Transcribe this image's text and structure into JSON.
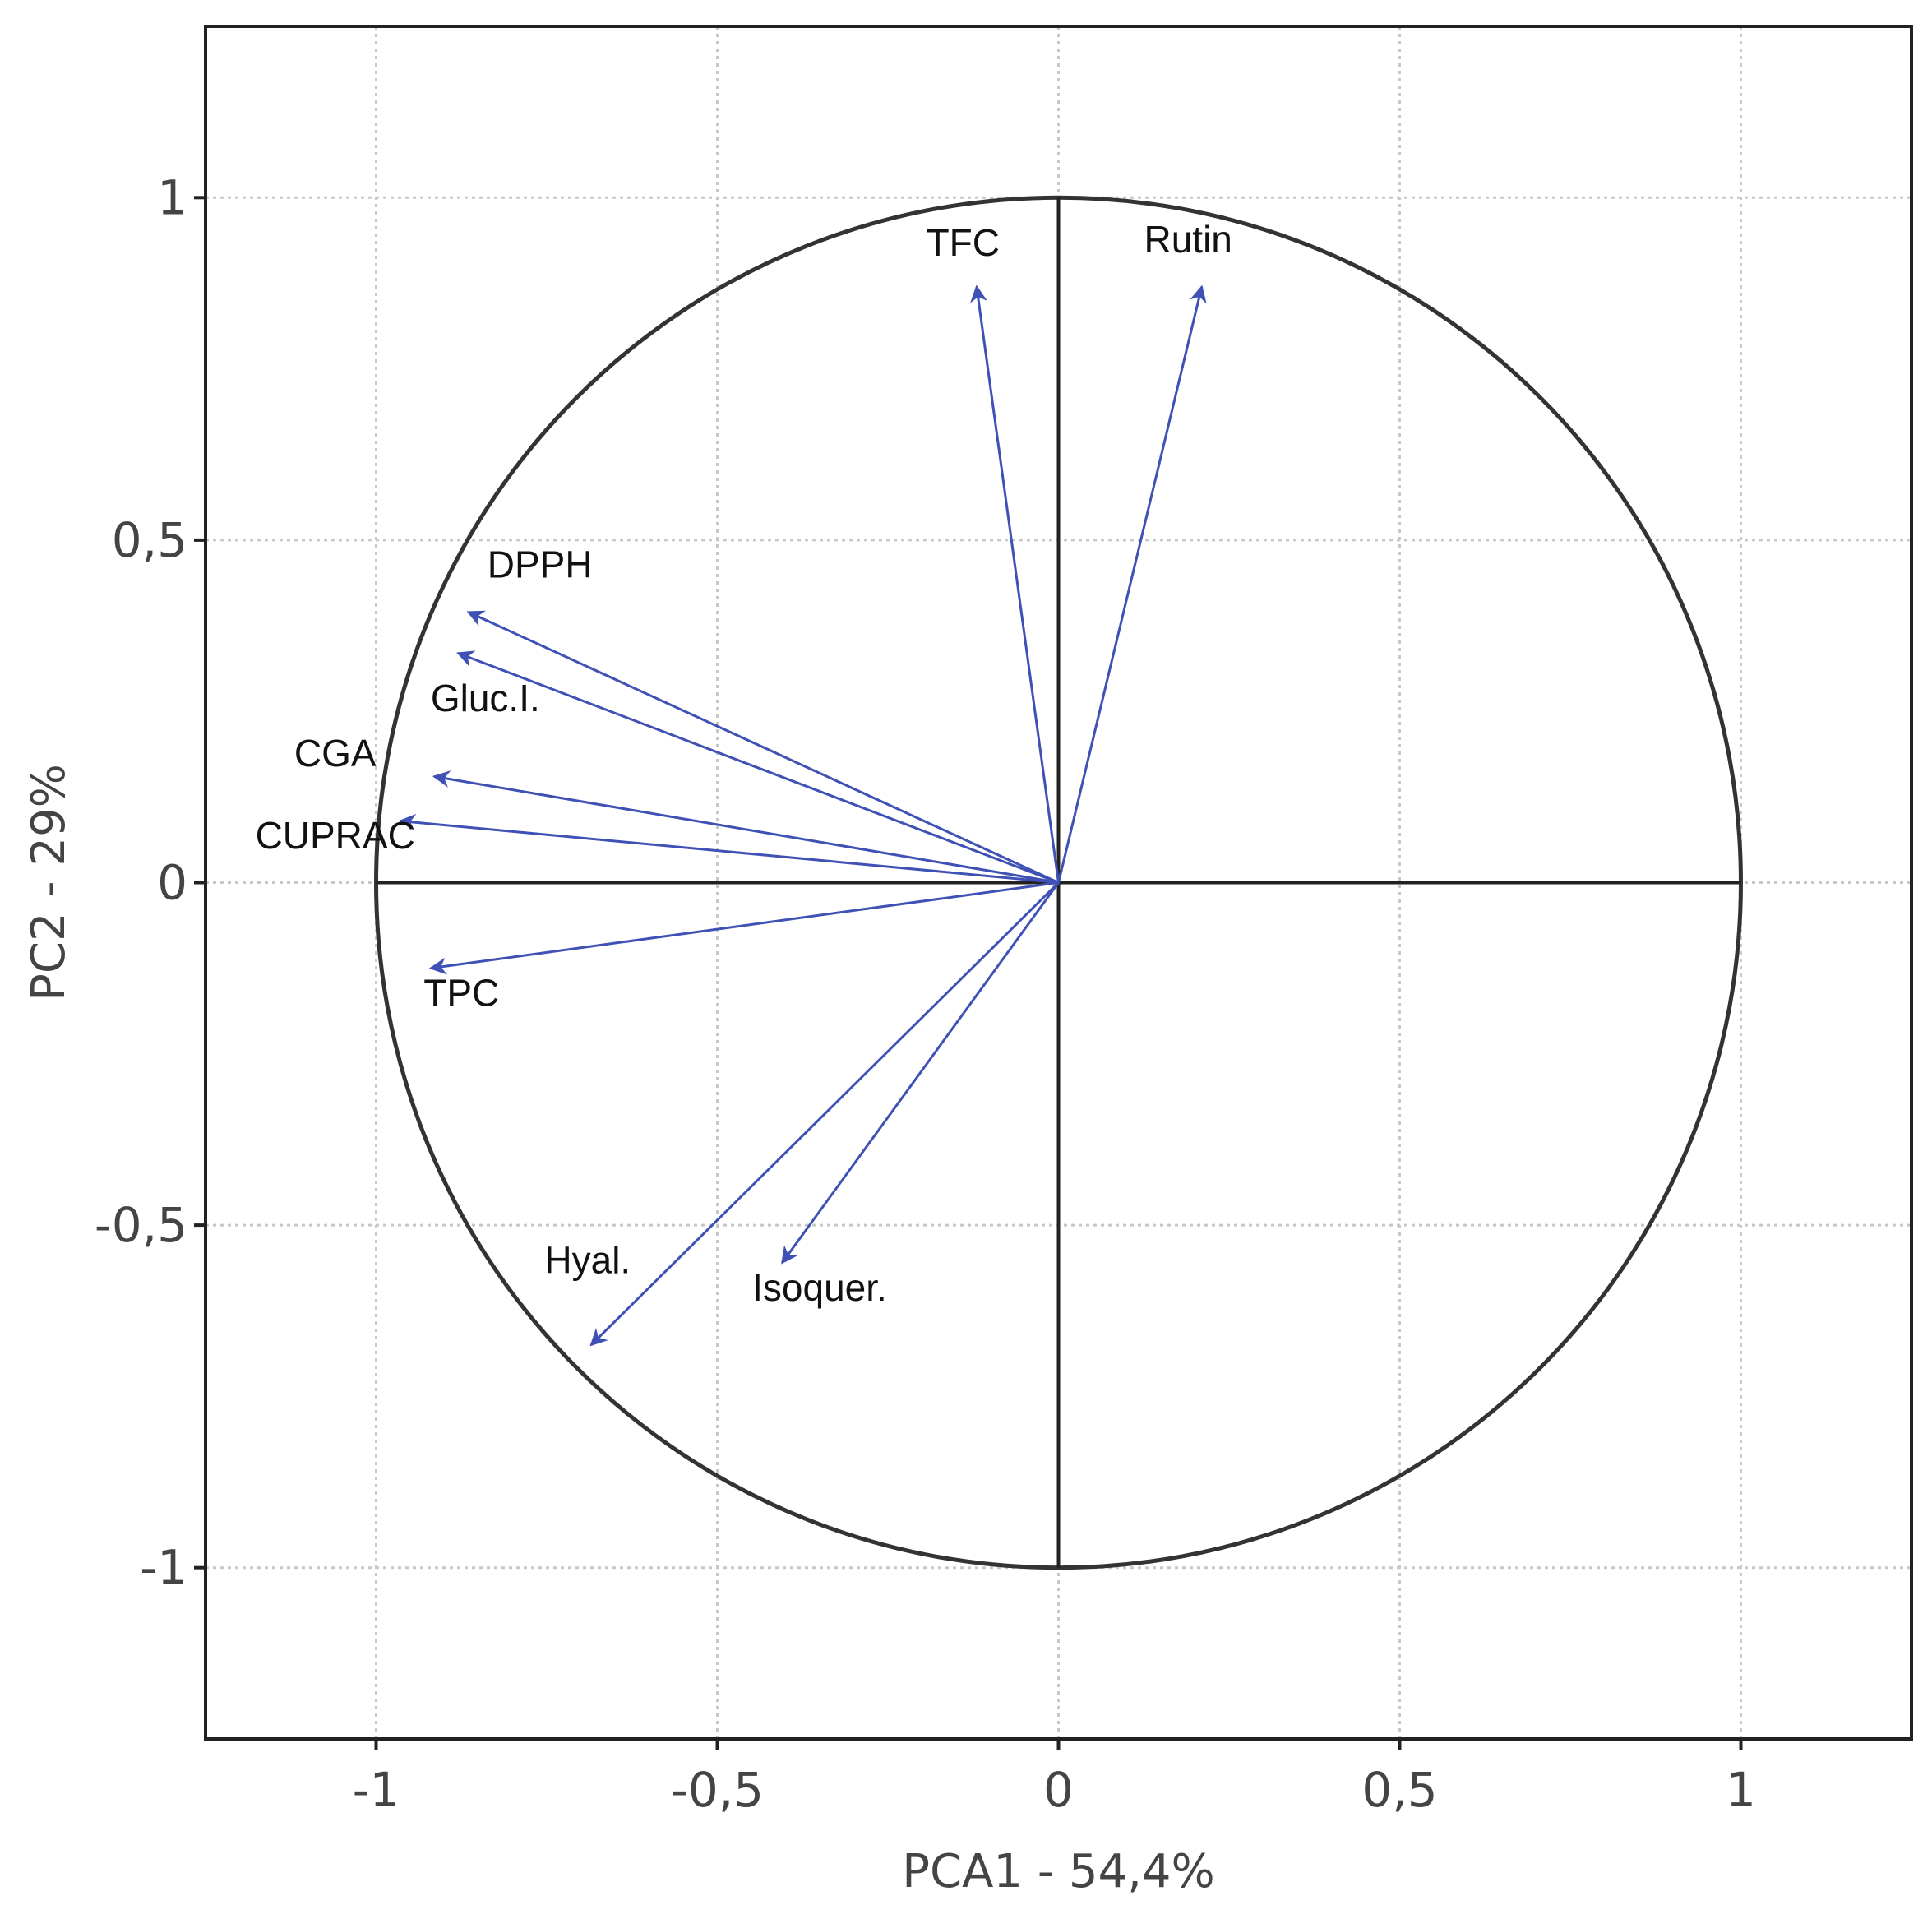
{
  "chart_data": {
    "type": "scatter",
    "subtype": "pca-correlation-circle",
    "xlabel": "PCA1 - 54,4%",
    "ylabel": "PC2 - 29%",
    "xlim": [
      -1.25,
      1.25
    ],
    "ylim": [
      -1.25,
      1.25
    ],
    "x_ticks": [
      {
        "value": -1,
        "label": "-1"
      },
      {
        "value": -0.5,
        "label": "-0,5"
      },
      {
        "value": 0,
        "label": "0"
      },
      {
        "value": 0.5,
        "label": "0,5"
      },
      {
        "value": 1,
        "label": "1"
      }
    ],
    "y_ticks": [
      {
        "value": 1,
        "label": "1"
      },
      {
        "value": 0.5,
        "label": "0,5"
      },
      {
        "value": 0,
        "label": "0"
      },
      {
        "value": -0.5,
        "label": "-0,5"
      },
      {
        "value": -1,
        "label": "-1"
      }
    ],
    "grid": true,
    "unit_circle": true,
    "vector_color": "#3f51b5",
    "vectors": [
      {
        "name": "TFC",
        "x": -0.12,
        "y": 0.87,
        "label_x": -0.14,
        "label_y": 0.915
      },
      {
        "name": "Rutin",
        "x": 0.21,
        "y": 0.87,
        "label_x": 0.19,
        "label_y": 0.92
      },
      {
        "name": "DPPH",
        "x": -0.865,
        "y": 0.395,
        "label_x": -0.76,
        "label_y": 0.445
      },
      {
        "name": "Gluc.I.",
        "x": -0.88,
        "y": 0.335,
        "label_x": -0.84,
        "label_y": 0.25
      },
      {
        "name": "CGA",
        "x": -0.915,
        "y": 0.155,
        "label_x": -1.06,
        "label_y": 0.17
      },
      {
        "name": "CUPRAC",
        "x": -0.965,
        "y": 0.09,
        "label_x": -1.06,
        "label_y": 0.05
      },
      {
        "name": "TPC",
        "x": -0.92,
        "y": -0.125,
        "label_x": -0.875,
        "label_y": -0.18
      },
      {
        "name": "Hyal.",
        "x": -0.685,
        "y": -0.675,
        "label_x": -0.69,
        "label_y": -0.57
      },
      {
        "name": "Isoquer.",
        "x": -0.405,
        "y": -0.555,
        "label_x": -0.35,
        "label_y": -0.61
      }
    ]
  }
}
